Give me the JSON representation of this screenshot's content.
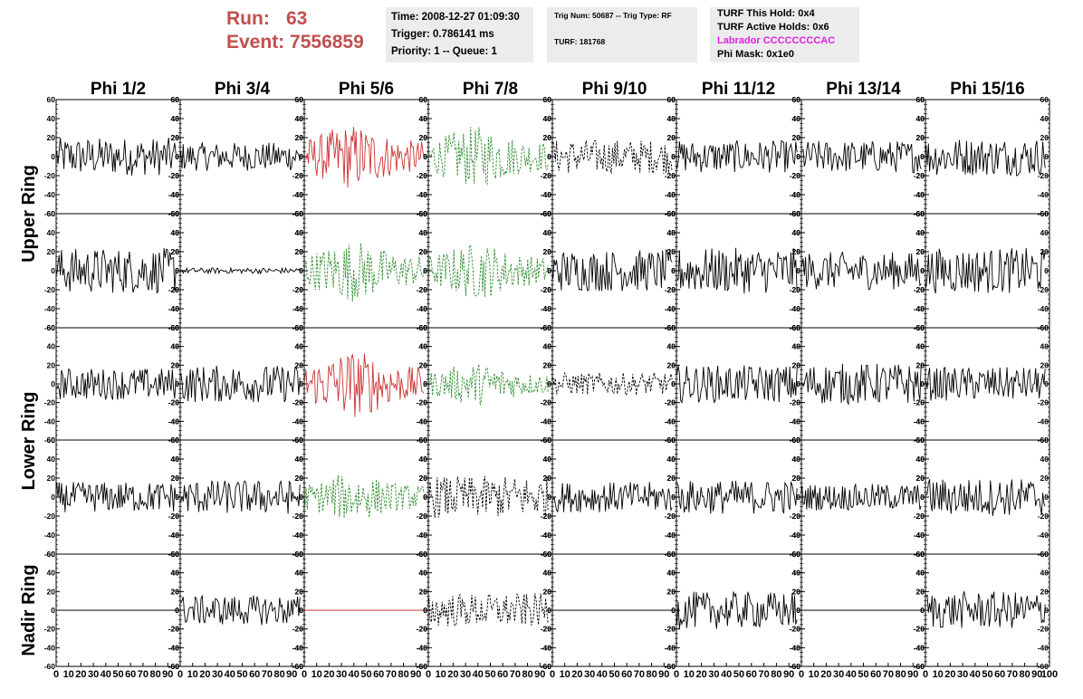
{
  "header": {
    "run_label": "Run:",
    "run_value": "63",
    "event_label": "Event:",
    "event_value": "7556859",
    "time": "Time: 2008-12-27 01:09:30",
    "trigger": "Trigger: 0.786141 ms",
    "priority": "Priority: 1 -- Queue: 1",
    "trig_num": "Trig Num: 50687 -- Trig Type: RF",
    "turf": "TURF: 181768",
    "turf_hold": "TURF This Hold: 0x4",
    "turf_active": "TURF Active Holds: 0x6",
    "labrador": "Labrador CCCCCCCCAC",
    "phi_mask": "Phi Mask: 0x1e0"
  },
  "colors": {
    "run_text": "#c0504d",
    "labrador_text": "#e020e0",
    "info_bg": "#ececec"
  },
  "chart_data": {
    "type": "line",
    "title": "",
    "columns": [
      "Phi 1/2",
      "Phi 3/4",
      "Phi 5/6",
      "Phi 7/8",
      "Phi 9/10",
      "Phi 11/12",
      "Phi 13/14",
      "Phi 15/16"
    ],
    "row_groups": [
      "Upper Ring",
      "Lower Ring",
      "Nadir Ring"
    ],
    "rows_per_group": [
      2,
      2,
      1
    ],
    "ylim": [
      -60,
      60
    ],
    "yticks": [
      -60,
      -40,
      -20,
      0,
      20,
      40,
      60
    ],
    "xlim": [
      0,
      100
    ],
    "xticks": [
      0,
      10,
      20,
      30,
      40,
      50,
      60,
      70,
      80,
      90,
      100
    ],
    "xtick_labels": [
      "0",
      "10",
      "20",
      "30",
      "40",
      "50",
      "60",
      "70",
      "80",
      "90",
      "100"
    ],
    "trace_colors": {
      "black": "#000000",
      "red": "#cc3333",
      "green": "#2e8b2e"
    },
    "panels": [
      [
        {
          "color": "black",
          "style": "solid",
          "amp": 20
        },
        {
          "color": "black",
          "style": "solid",
          "amp": 15
        },
        {
          "color": "red",
          "style": "solid",
          "amp": 30
        },
        {
          "color": "green",
          "style": "dashed",
          "amp": 28
        },
        {
          "color": "black",
          "style": "dashed",
          "amp": 18
        },
        {
          "color": "black",
          "style": "solid",
          "amp": 17
        },
        {
          "color": "black",
          "style": "solid",
          "amp": 17
        },
        {
          "color": "black",
          "style": "solid",
          "amp": 20
        }
      ],
      [
        {
          "color": "black",
          "style": "solid",
          "amp": 24
        },
        {
          "color": "black",
          "style": "solid",
          "amp": 3
        },
        {
          "color": "green",
          "style": "dashed",
          "amp": 28
        },
        {
          "color": "green",
          "style": "dashed",
          "amp": 26
        },
        {
          "color": "black",
          "style": "solid",
          "amp": 22
        },
        {
          "color": "black",
          "style": "solid",
          "amp": 24
        },
        {
          "color": "black",
          "style": "solid",
          "amp": 20
        },
        {
          "color": "black",
          "style": "solid",
          "amp": 24
        }
      ],
      [
        {
          "color": "black",
          "style": "solid",
          "amp": 17
        },
        {
          "color": "black",
          "style": "solid",
          "amp": 20
        },
        {
          "color": "red",
          "style": "solid",
          "amp": 32
        },
        {
          "color": "green",
          "style": "dashed",
          "amp": 20
        },
        {
          "color": "black",
          "style": "dashed",
          "amp": 12
        },
        {
          "color": "black",
          "style": "solid",
          "amp": 20
        },
        {
          "color": "black",
          "style": "solid",
          "amp": 22
        },
        {
          "color": "black",
          "style": "solid",
          "amp": 18
        }
      ],
      [
        {
          "color": "black",
          "style": "solid",
          "amp": 16
        },
        {
          "color": "black",
          "style": "solid",
          "amp": 18
        },
        {
          "color": "green",
          "style": "dashed",
          "amp": 22
        },
        {
          "color": "black",
          "style": "dashed",
          "amp": 22
        },
        {
          "color": "black",
          "style": "solid",
          "amp": 16
        },
        {
          "color": "black",
          "style": "solid",
          "amp": 18
        },
        {
          "color": "black",
          "style": "solid",
          "amp": 14
        },
        {
          "color": "black",
          "style": "solid",
          "amp": 20
        }
      ],
      [
        {
          "color": "black",
          "style": "solid",
          "amp": 0
        },
        {
          "color": "black",
          "style": "solid",
          "amp": 16
        },
        {
          "color": "red",
          "style": "solid",
          "amp": 0
        },
        {
          "color": "black",
          "style": "dashed",
          "amp": 18
        },
        {
          "color": "black",
          "style": "solid",
          "amp": 0
        },
        {
          "color": "black",
          "style": "solid",
          "amp": 20
        },
        {
          "color": "black",
          "style": "solid",
          "amp": 0
        },
        {
          "color": "black",
          "style": "solid",
          "amp": 20
        }
      ]
    ]
  }
}
